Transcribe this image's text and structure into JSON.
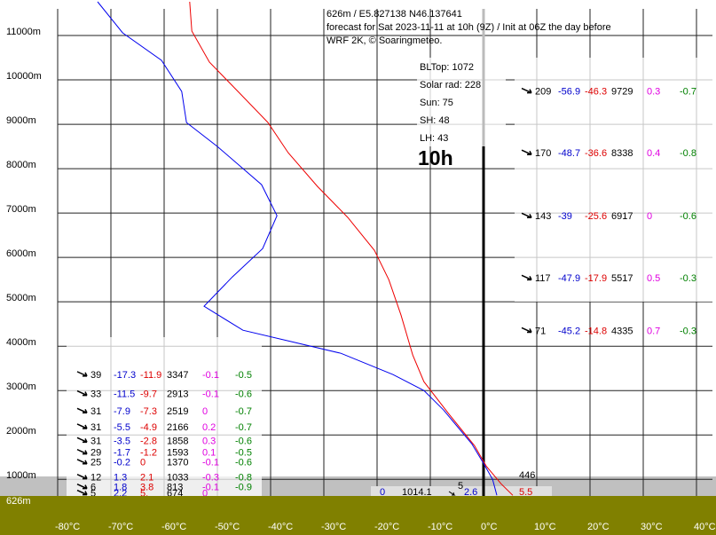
{
  "chart_data": {
    "type": "line",
    "header": [
      "626m / E5.827138 N46.137641",
      "forecast for Sat 2023-11-11  at 10h (9Z) / Init at 06Z the day before",
      "WRF 2K, © Soaringmeteo."
    ],
    "ground_label": "626m",
    "xlim": [
      -80,
      43.7
    ],
    "ylim": [
      626,
      11800
    ],
    "xticks": [
      {
        "value": -80,
        "label": "-80°C"
      },
      {
        "value": -70,
        "label": "-70°C"
      },
      {
        "value": -60,
        "label": "-60°C"
      },
      {
        "value": -50,
        "label": "-50°C"
      },
      {
        "value": -40,
        "label": "-40°C"
      },
      {
        "value": -30,
        "label": "-30°C"
      },
      {
        "value": -20,
        "label": "-20°C"
      },
      {
        "value": -10,
        "label": "-10°C"
      },
      {
        "value": 0,
        "label": "0°C"
      },
      {
        "value": 10,
        "label": "10°C"
      },
      {
        "value": 20,
        "label": "20°C"
      },
      {
        "value": 30,
        "label": "30°C"
      },
      {
        "value": 40,
        "label": "40°C"
      }
    ],
    "yticks": [
      {
        "value": 1000,
        "label": "1000m"
      },
      {
        "value": 2000,
        "label": "2000m"
      },
      {
        "value": 3000,
        "label": "3000m"
      },
      {
        "value": 4000,
        "label": "4000m"
      },
      {
        "value": 5000,
        "label": "5000m"
      },
      {
        "value": 6000,
        "label": "6000m"
      },
      {
        "value": 7000,
        "label": "7000m"
      },
      {
        "value": 8000,
        "label": "8000m"
      },
      {
        "value": 9000,
        "label": "9000m"
      },
      {
        "value": 10000,
        "label": "10000m"
      },
      {
        "value": 11000,
        "label": "11000m"
      }
    ],
    "series": [
      {
        "color": "#ee0000",
        "x": [
          -55.2,
          -54.8,
          -51.5,
          -45.8,
          -40.5,
          -36.7,
          -31.2,
          -25.5,
          -20.5,
          -17.8,
          -15.5,
          -13.3,
          -11.2,
          -6.7,
          -1.7,
          0.5,
          3.3,
          5.5
        ],
        "values": [
          11760,
          11100,
          10400,
          9700,
          9040,
          8360,
          7600,
          6900,
          6160,
          5500,
          4700,
          3800,
          3200,
          2500,
          1760,
          1300,
          900,
          640
        ]
      },
      {
        "color": "#0000ee",
        "x": [
          -72.5,
          -67.8,
          -60.5,
          -56.7,
          -55.8,
          -50,
          -41.7,
          -38.8,
          -41.5,
          -47.2,
          -52.5,
          -45.2,
          -26.8,
          -17,
          -11.2,
          -7.5,
          -2.2,
          0,
          1.7,
          2.5
        ],
        "values": [
          11760,
          11060,
          10440,
          9740,
          9040,
          8500,
          7640,
          6940,
          6200,
          5560,
          4900,
          4360,
          3840,
          3360,
          3000,
          2560,
          1800,
          1360,
          1000,
          640
        ]
      }
    ]
  },
  "info": [
    "BLTop: 1072",
    "Solar rad: 228",
    "Sun: 75",
    "SH: 48",
    "LH: 43"
  ],
  "hour": "10h",
  "table_right": [
    [
      209,
      -56.9,
      -46.3,
      9729,
      0.3,
      -0.7
    ],
    [
      170,
      -48.7,
      -36.6,
      8338,
      0.4,
      -0.8
    ],
    [
      143,
      -39,
      -25.6,
      6917,
      0,
      -0.6
    ],
    [
      117,
      -47.9,
      -17.9,
      5517,
      0.5,
      -0.3
    ],
    [
      71,
      -45.2,
      -14.8,
      4335,
      0.7,
      -0.3
    ]
  ],
  "table_left": [
    [
      39,
      -17.3,
      -11.9,
      3347,
      -0.1,
      -0.5
    ],
    [
      33,
      -11.5,
      -9.7,
      2913,
      -0.1,
      -0.6
    ],
    [
      31,
      -7.9,
      -7.3,
      2519,
      0,
      -0.7
    ],
    [
      31,
      -5.5,
      -4.9,
      2166,
      0.2,
      -0.7
    ],
    [
      31,
      -3.5,
      -2.8,
      1858,
      0.3,
      -0.6
    ],
    [
      29,
      -1.7,
      -1.2,
      1593,
      0.1,
      -0.5
    ],
    [
      25,
      -0.2,
      0,
      1370,
      -0.1,
      -0.6
    ],
    [
      12,
      1.3,
      2.1,
      1033,
      -0.3,
      -0.8
    ],
    [
      6,
      1.8,
      3.8,
      813,
      -0.1,
      -0.9
    ],
    [
      5,
      2.2,
      "5.",
      674,
      0
    ]
  ],
  "surface": {
    "cloud": 446,
    "a": 0,
    "pressure": 1014.1,
    "wind": 5,
    "dew": 2.6,
    "temp": 5.5
  }
}
